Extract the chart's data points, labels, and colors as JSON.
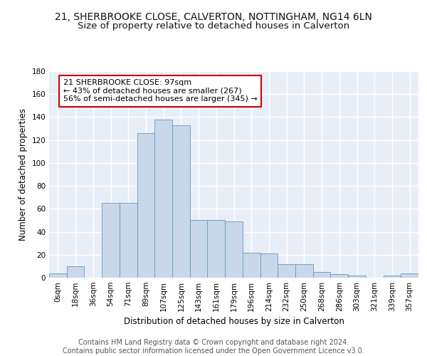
{
  "title_line1": "21, SHERBROOKE CLOSE, CALVERTON, NOTTINGHAM, NG14 6LN",
  "title_line2": "Size of property relative to detached houses in Calverton",
  "xlabel": "Distribution of detached houses by size in Calverton",
  "ylabel": "Number of detached properties",
  "bar_color": "#c8d8ea",
  "bar_edge_color": "#6699bb",
  "bg_color": "#e8eef8",
  "grid_color": "#ffffff",
  "bin_labels": [
    "0sqm",
    "18sqm",
    "36sqm",
    "54sqm",
    "71sqm",
    "89sqm",
    "107sqm",
    "125sqm",
    "143sqm",
    "161sqm",
    "179sqm",
    "196sqm",
    "214sqm",
    "232sqm",
    "250sqm",
    "268sqm",
    "286sqm",
    "303sqm",
    "321sqm",
    "339sqm",
    "357sqm"
  ],
  "bar_heights": [
    4,
    10,
    0,
    65,
    65,
    126,
    138,
    133,
    50,
    50,
    49,
    22,
    21,
    12,
    12,
    5,
    3,
    2,
    0,
    2,
    4
  ],
  "ylim": [
    0,
    180
  ],
  "yticks": [
    0,
    20,
    40,
    60,
    80,
    100,
    120,
    140,
    160,
    180
  ],
  "annotation_text": "21 SHERBROOKE CLOSE: 97sqm\n← 43% of detached houses are smaller (267)\n56% of semi-detached houses are larger (345) →",
  "annotation_box_color": "#ffffff",
  "annotation_box_edge": "#cc0000",
  "footer_text": "Contains HM Land Registry data © Crown copyright and database right 2024.\nContains public sector information licensed under the Open Government Licence v3.0.",
  "title_fontsize": 10,
  "subtitle_fontsize": 9.5,
  "label_fontsize": 8.5,
  "tick_fontsize": 7.5,
  "footer_fontsize": 7,
  "ann_fontsize": 8
}
